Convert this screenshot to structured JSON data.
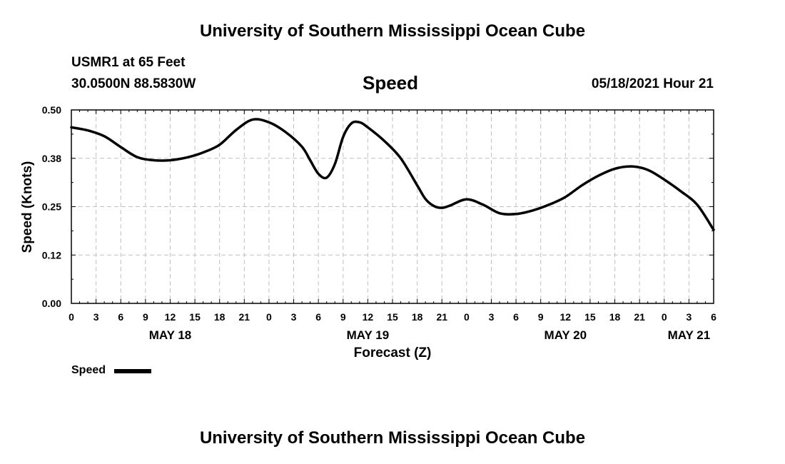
{
  "page": {
    "title_top": "University of Southern Mississippi Ocean Cube",
    "title_bottom": "University of Southern Mississippi Ocean Cube",
    "station": "USMR1 at 65 Feet",
    "coords": "30.0500N  88.5830W",
    "valid_time": "05/18/2021 Hour 21"
  },
  "chart_data": {
    "type": "line",
    "title": "Speed",
    "xlabel": "Forecast (Z)",
    "ylabel": "Speed (Knots)",
    "ylim": [
      0,
      0.5
    ],
    "y_ticks": [
      "0.00",
      "0.12",
      "0.25",
      "0.38",
      "0.50"
    ],
    "y_tick_values": [
      0,
      0.125,
      0.25,
      0.375,
      0.5
    ],
    "xlim": [
      0,
      78
    ],
    "x_ticks": [
      0,
      3,
      6,
      9,
      12,
      15,
      18,
      21,
      24,
      27,
      30,
      33,
      36,
      39,
      42,
      45,
      48,
      51,
      54,
      57,
      60,
      63,
      66,
      69,
      72,
      75,
      78
    ],
    "x_tick_labels": [
      "0",
      "3",
      "6",
      "9",
      "12",
      "15",
      "18",
      "21",
      "0",
      "3",
      "6",
      "9",
      "12",
      "15",
      "18",
      "21",
      "0",
      "3",
      "6",
      "9",
      "12",
      "15",
      "18",
      "21",
      "0",
      "3",
      "6"
    ],
    "date_labels": [
      {
        "hour": 12,
        "label": "MAY 18"
      },
      {
        "hour": 36,
        "label": "MAY 19"
      },
      {
        "hour": 60,
        "label": "MAY 20"
      },
      {
        "hour": 75,
        "label": "MAY 21"
      }
    ],
    "grid": true,
    "legend": [
      {
        "name": "Speed",
        "position": "bottom-left"
      }
    ],
    "series": [
      {
        "name": "Speed",
        "x": [
          0,
          2,
          4,
          6,
          8,
          10,
          12,
          14,
          16,
          18,
          20,
          22,
          24,
          26,
          28,
          29,
          30,
          31,
          32,
          33,
          34,
          35,
          36,
          38,
          40,
          42,
          43,
          44,
          45,
          46,
          48,
          50,
          52,
          54,
          56,
          58,
          60,
          62,
          64,
          66,
          68,
          70,
          72,
          74,
          76,
          78
        ],
        "values": [
          0.455,
          0.447,
          0.432,
          0.404,
          0.378,
          0.37,
          0.37,
          0.377,
          0.39,
          0.41,
          0.448,
          0.475,
          0.468,
          0.443,
          0.405,
          0.37,
          0.335,
          0.325,
          0.36,
          0.43,
          0.465,
          0.468,
          0.455,
          0.42,
          0.375,
          0.305,
          0.27,
          0.252,
          0.247,
          0.253,
          0.269,
          0.255,
          0.233,
          0.231,
          0.24,
          0.255,
          0.275,
          0.305,
          0.33,
          0.348,
          0.354,
          0.345,
          0.32,
          0.29,
          0.255,
          0.19
        ]
      }
    ]
  }
}
